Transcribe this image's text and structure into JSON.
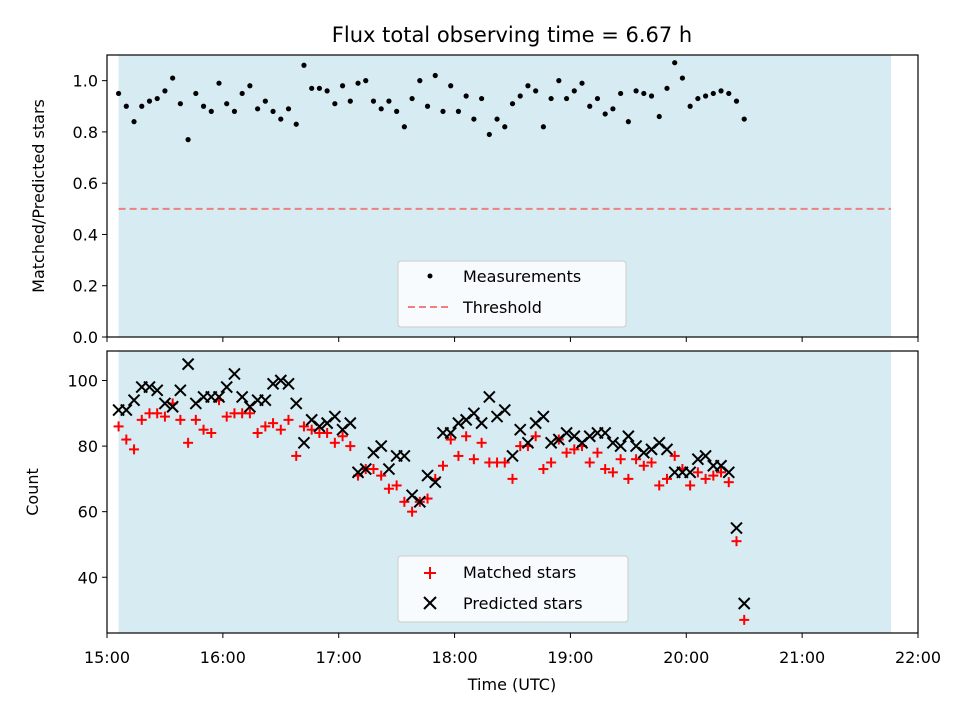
{
  "figure": {
    "title": "Flux total observing time = 6.67 h",
    "x_label": "Time (UTC)",
    "x_ticks": [
      "15:00",
      "16:00",
      "17:00",
      "18:00",
      "19:00",
      "20:00",
      "21:00",
      "22:00"
    ]
  },
  "chart_data": [
    {
      "type": "scatter",
      "panel": "top",
      "ylabel": "Matched/Predicted stars",
      "ylim": [
        0.0,
        1.1
      ],
      "yticks": [
        "0.0",
        "0.2",
        "0.4",
        "0.6",
        "0.8",
        "1.0"
      ],
      "xlim": [
        "15:00",
        "22:00"
      ],
      "observing_window": [
        "15:06",
        "21:46"
      ],
      "shade_color": "#add8e6",
      "legend": {
        "placement": "lower center",
        "entries": [
          "Measurements",
          "Threshold"
        ]
      },
      "threshold": {
        "name": "Threshold",
        "value": 0.5,
        "color": "#f08080",
        "style": "dashed"
      },
      "series": [
        {
          "name": "Measurements",
          "color": "#000000",
          "marker": "dot",
          "points": [
            [
              "15:06",
              0.95
            ],
            [
              "15:10",
              0.9
            ],
            [
              "15:14",
              0.84
            ],
            [
              "15:18",
              0.9
            ],
            [
              "15:22",
              0.92
            ],
            [
              "15:26",
              0.93
            ],
            [
              "15:30",
              0.96
            ],
            [
              "15:34",
              1.01
            ],
            [
              "15:38",
              0.91
            ],
            [
              "15:42",
              0.77
            ],
            [
              "15:46",
              0.95
            ],
            [
              "15:50",
              0.9
            ],
            [
              "15:54",
              0.88
            ],
            [
              "15:58",
              0.99
            ],
            [
              "16:02",
              0.91
            ],
            [
              "16:06",
              0.88
            ],
            [
              "16:10",
              0.95
            ],
            [
              "16:14",
              0.98
            ],
            [
              "16:18",
              0.89
            ],
            [
              "16:22",
              0.92
            ],
            [
              "16:26",
              0.88
            ],
            [
              "16:30",
              0.85
            ],
            [
              "16:34",
              0.89
            ],
            [
              "16:38",
              0.83
            ],
            [
              "16:42",
              1.06
            ],
            [
              "16:46",
              0.97
            ],
            [
              "16:50",
              0.97
            ],
            [
              "16:54",
              0.96
            ],
            [
              "16:58",
              0.91
            ],
            [
              "17:02",
              0.98
            ],
            [
              "17:06",
              0.92
            ],
            [
              "17:10",
              0.99
            ],
            [
              "17:14",
              1.0
            ],
            [
              "17:18",
              0.92
            ],
            [
              "17:22",
              0.89
            ],
            [
              "17:26",
              0.92
            ],
            [
              "17:30",
              0.88
            ],
            [
              "17:34",
              0.82
            ],
            [
              "17:38",
              0.93
            ],
            [
              "17:42",
              1.0
            ],
            [
              "17:46",
              0.9
            ],
            [
              "17:50",
              1.02
            ],
            [
              "17:54",
              0.88
            ],
            [
              "17:58",
              0.98
            ],
            [
              "18:02",
              0.88
            ],
            [
              "18:06",
              0.94
            ],
            [
              "18:10",
              0.85
            ],
            [
              "18:14",
              0.93
            ],
            [
              "18:18",
              0.79
            ],
            [
              "18:22",
              0.85
            ],
            [
              "18:26",
              0.82
            ],
            [
              "18:30",
              0.91
            ],
            [
              "18:34",
              0.94
            ],
            [
              "18:38",
              0.98
            ],
            [
              "18:42",
              0.96
            ],
            [
              "18:46",
              0.82
            ],
            [
              "18:50",
              0.93
            ],
            [
              "18:54",
              1.0
            ],
            [
              "18:58",
              0.93
            ],
            [
              "19:02",
              0.96
            ],
            [
              "19:06",
              0.99
            ],
            [
              "19:10",
              0.9
            ],
            [
              "19:14",
              0.93
            ],
            [
              "19:18",
              0.87
            ],
            [
              "19:22",
              0.89
            ],
            [
              "19:26",
              0.95
            ],
            [
              "19:30",
              0.84
            ],
            [
              "19:34",
              0.96
            ],
            [
              "19:38",
              0.95
            ],
            [
              "19:42",
              0.94
            ],
            [
              "19:46",
              0.86
            ],
            [
              "19:50",
              0.97
            ],
            [
              "19:54",
              1.07
            ],
            [
              "19:58",
              1.01
            ],
            [
              "20:02",
              0.9
            ],
            [
              "20:06",
              0.93
            ],
            [
              "20:10",
              0.94
            ],
            [
              "20:14",
              0.95
            ],
            [
              "20:18",
              0.96
            ],
            [
              "20:22",
              0.95
            ],
            [
              "20:26",
              0.92
            ],
            [
              "20:30",
              0.85
            ]
          ]
        }
      ]
    },
    {
      "type": "scatter",
      "panel": "bottom",
      "ylabel": "Count",
      "ylim": [
        23,
        109
      ],
      "yticks": [
        "40",
        "60",
        "80",
        "100"
      ],
      "xlim": [
        "15:00",
        "22:00"
      ],
      "observing_window": [
        "15:06",
        "21:46"
      ],
      "shade_color": "#add8e6",
      "legend": {
        "placement": "lower center",
        "entries": [
          "Matched stars",
          "Predicted stars"
        ]
      },
      "series": [
        {
          "name": "Matched stars",
          "color": "#ff0000",
          "marker": "plus",
          "points": [
            [
              "15:06",
              86
            ],
            [
              "15:10",
              82
            ],
            [
              "15:14",
              79
            ],
            [
              "15:18",
              88
            ],
            [
              "15:22",
              90
            ],
            [
              "15:26",
              90
            ],
            [
              "15:30",
              89
            ],
            [
              "15:34",
              93
            ],
            [
              "15:38",
              88
            ],
            [
              "15:42",
              81
            ],
            [
              "15:46",
              88
            ],
            [
              "15:50",
              85
            ],
            [
              "15:54",
              84
            ],
            [
              "15:58",
              94
            ],
            [
              "16:02",
              89
            ],
            [
              "16:06",
              90
            ],
            [
              "16:10",
              90
            ],
            [
              "16:14",
              90
            ],
            [
              "16:18",
              84
            ],
            [
              "16:22",
              86
            ],
            [
              "16:26",
              87
            ],
            [
              "16:30",
              85
            ],
            [
              "16:34",
              88
            ],
            [
              "16:38",
              77
            ],
            [
              "16:42",
              86
            ],
            [
              "16:46",
              85
            ],
            [
              "16:50",
              84
            ],
            [
              "16:54",
              84
            ],
            [
              "16:58",
              81
            ],
            [
              "17:02",
              83
            ],
            [
              "17:06",
              80
            ],
            [
              "17:10",
              71
            ],
            [
              "17:14",
              73
            ],
            [
              "17:18",
              73
            ],
            [
              "17:22",
              71
            ],
            [
              "17:26",
              67
            ],
            [
              "17:30",
              68
            ],
            [
              "17:34",
              63
            ],
            [
              "17:38",
              60
            ],
            [
              "17:42",
              63
            ],
            [
              "17:46",
              64
            ],
            [
              "17:50",
              70
            ],
            [
              "17:54",
              74
            ],
            [
              "17:58",
              82
            ],
            [
              "18:02",
              77
            ],
            [
              "18:06",
              83
            ],
            [
              "18:10",
              76
            ],
            [
              "18:14",
              81
            ],
            [
              "18:18",
              75
            ],
            [
              "18:22",
              75
            ],
            [
              "18:26",
              75
            ],
            [
              "18:30",
              70
            ],
            [
              "18:34",
              80
            ],
            [
              "18:38",
              80
            ],
            [
              "18:42",
              83
            ],
            [
              "18:46",
              73
            ],
            [
              "18:50",
              75
            ],
            [
              "18:54",
              82
            ],
            [
              "18:58",
              78
            ],
            [
              "19:02",
              79
            ],
            [
              "19:06",
              80
            ],
            [
              "19:10",
              75
            ],
            [
              "19:14",
              78
            ],
            [
              "19:18",
              73
            ],
            [
              "19:22",
              72
            ],
            [
              "19:26",
              76
            ],
            [
              "19:30",
              70
            ],
            [
              "19:34",
              76
            ],
            [
              "19:38",
              74
            ],
            [
              "19:42",
              75
            ],
            [
              "19:46",
              68
            ],
            [
              "19:50",
              70
            ],
            [
              "19:54",
              77
            ],
            [
              "19:58",
              73
            ],
            [
              "20:02",
              68
            ],
            [
              "20:06",
              72
            ],
            [
              "20:10",
              70
            ],
            [
              "20:14",
              71
            ],
            [
              "20:18",
              72
            ],
            [
              "20:22",
              69
            ],
            [
              "20:26",
              51
            ],
            [
              "20:30",
              27
            ]
          ]
        },
        {
          "name": "Predicted stars",
          "color": "#000000",
          "marker": "x",
          "points": [
            [
              "15:06",
              91
            ],
            [
              "15:10",
              91
            ],
            [
              "15:14",
              94
            ],
            [
              "15:18",
              98
            ],
            [
              "15:22",
              98
            ],
            [
              "15:26",
              97
            ],
            [
              "15:30",
              93
            ],
            [
              "15:34",
              92
            ],
            [
              "15:38",
              97
            ],
            [
              "15:42",
              105
            ],
            [
              "15:46",
              93
            ],
            [
              "15:50",
              95
            ],
            [
              "15:54",
              95
            ],
            [
              "15:58",
              95
            ],
            [
              "16:02",
              98
            ],
            [
              "16:06",
              102
            ],
            [
              "16:10",
              95
            ],
            [
              "16:14",
              92
            ],
            [
              "16:18",
              94
            ],
            [
              "16:22",
              94
            ],
            [
              "16:26",
              99
            ],
            [
              "16:30",
              100
            ],
            [
              "16:34",
              99
            ],
            [
              "16:38",
              93
            ],
            [
              "16:42",
              81
            ],
            [
              "16:46",
              88
            ],
            [
              "16:50",
              86
            ],
            [
              "16:54",
              87
            ],
            [
              "16:58",
              89
            ],
            [
              "17:02",
              85
            ],
            [
              "17:06",
              87
            ],
            [
              "17:10",
              72
            ],
            [
              "17:14",
              73
            ],
            [
              "17:18",
              78
            ],
            [
              "17:22",
              80
            ],
            [
              "17:26",
              73
            ],
            [
              "17:30",
              77
            ],
            [
              "17:34",
              77
            ],
            [
              "17:38",
              65
            ],
            [
              "17:42",
              63
            ],
            [
              "17:46",
              71
            ],
            [
              "17:50",
              69
            ],
            [
              "17:54",
              84
            ],
            [
              "17:58",
              84
            ],
            [
              "18:02",
              87
            ],
            [
              "18:06",
              88
            ],
            [
              "18:10",
              90
            ],
            [
              "18:14",
              87
            ],
            [
              "18:18",
              95
            ],
            [
              "18:22",
              89
            ],
            [
              "18:26",
              91
            ],
            [
              "18:30",
              77
            ],
            [
              "18:34",
              85
            ],
            [
              "18:38",
              81
            ],
            [
              "18:42",
              87
            ],
            [
              "18:46",
              89
            ],
            [
              "18:50",
              81
            ],
            [
              "18:54",
              82
            ],
            [
              "18:58",
              84
            ],
            [
              "19:02",
              83
            ],
            [
              "19:06",
              81
            ],
            [
              "19:10",
              83
            ],
            [
              "19:14",
              84
            ],
            [
              "19:18",
              84
            ],
            [
              "19:22",
              81
            ],
            [
              "19:26",
              80
            ],
            [
              "19:30",
              83
            ],
            [
              "19:34",
              80
            ],
            [
              "19:38",
              78
            ],
            [
              "19:42",
              79
            ],
            [
              "19:46",
              81
            ],
            [
              "19:50",
              79
            ],
            [
              "19:54",
              72
            ],
            [
              "19:58",
              72
            ],
            [
              "20:02",
              72
            ],
            [
              "20:06",
              76
            ],
            [
              "20:10",
              77
            ],
            [
              "20:14",
              74
            ],
            [
              "20:18",
              74
            ],
            [
              "20:22",
              72
            ],
            [
              "20:26",
              55
            ],
            [
              "20:30",
              32
            ]
          ]
        }
      ]
    }
  ]
}
